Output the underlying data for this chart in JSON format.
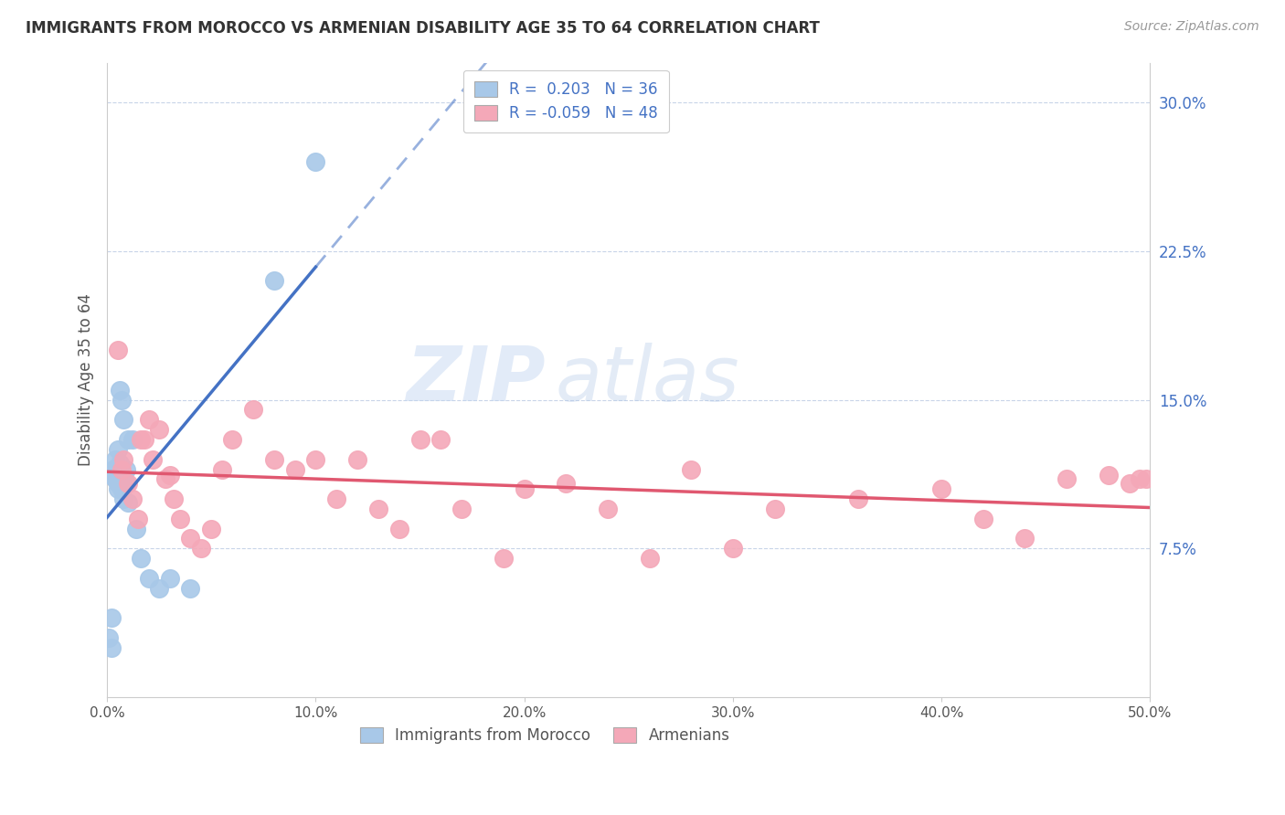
{
  "title": "IMMIGRANTS FROM MOROCCO VS ARMENIAN DISABILITY AGE 35 TO 64 CORRELATION CHART",
  "source": "Source: ZipAtlas.com",
  "ylabel": "Disability Age 35 to 64",
  "xlim": [
    0.0,
    0.5
  ],
  "ylim": [
    0.0,
    0.32
  ],
  "xticks": [
    0.0,
    0.1,
    0.2,
    0.3,
    0.4,
    0.5
  ],
  "yticks": [
    0.075,
    0.15,
    0.225,
    0.3
  ],
  "ytick_labels": [
    "7.5%",
    "15.0%",
    "22.5%",
    "30.0%"
  ],
  "xtick_labels": [
    "0.0%",
    "10.0%",
    "20.0%",
    "30.0%",
    "40.0%",
    "50.0%"
  ],
  "morocco_R": 0.203,
  "morocco_N": 36,
  "armenian_R": -0.059,
  "armenian_N": 48,
  "morocco_color": "#a8c8e8",
  "armenian_color": "#f4a8b8",
  "morocco_line_color": "#4472c4",
  "armenian_line_color": "#e05870",
  "tick_color": "#4472c4",
  "background_color": "#ffffff",
  "grid_color": "#c8d4e8",
  "watermark_text": "ZIPatlas",
  "morocco_x": [
    0.001,
    0.002,
    0.002,
    0.003,
    0.003,
    0.003,
    0.004,
    0.004,
    0.004,
    0.005,
    0.005,
    0.005,
    0.005,
    0.006,
    0.006,
    0.006,
    0.006,
    0.007,
    0.007,
    0.007,
    0.008,
    0.008,
    0.008,
    0.009,
    0.009,
    0.01,
    0.01,
    0.012,
    0.014,
    0.016,
    0.02,
    0.025,
    0.03,
    0.04,
    0.08,
    0.1
  ],
  "morocco_y": [
    0.03,
    0.025,
    0.04,
    0.115,
    0.115,
    0.115,
    0.11,
    0.11,
    0.12,
    0.105,
    0.108,
    0.112,
    0.125,
    0.11,
    0.11,
    0.118,
    0.155,
    0.105,
    0.108,
    0.15,
    0.1,
    0.112,
    0.14,
    0.108,
    0.115,
    0.098,
    0.13,
    0.13,
    0.085,
    0.07,
    0.06,
    0.055,
    0.06,
    0.055,
    0.21,
    0.27
  ],
  "armenian_x": [
    0.005,
    0.007,
    0.008,
    0.01,
    0.012,
    0.015,
    0.016,
    0.018,
    0.02,
    0.022,
    0.025,
    0.028,
    0.03,
    0.032,
    0.035,
    0.04,
    0.045,
    0.05,
    0.055,
    0.06,
    0.07,
    0.08,
    0.09,
    0.1,
    0.11,
    0.12,
    0.13,
    0.14,
    0.15,
    0.16,
    0.17,
    0.19,
    0.2,
    0.22,
    0.24,
    0.26,
    0.28,
    0.3,
    0.32,
    0.36,
    0.4,
    0.42,
    0.44,
    0.46,
    0.48,
    0.49,
    0.495,
    0.498
  ],
  "armenian_y": [
    0.175,
    0.115,
    0.12,
    0.108,
    0.1,
    0.09,
    0.13,
    0.13,
    0.14,
    0.12,
    0.135,
    0.11,
    0.112,
    0.1,
    0.09,
    0.08,
    0.075,
    0.085,
    0.115,
    0.13,
    0.145,
    0.12,
    0.115,
    0.12,
    0.1,
    0.12,
    0.095,
    0.085,
    0.13,
    0.13,
    0.095,
    0.07,
    0.105,
    0.108,
    0.095,
    0.07,
    0.115,
    0.075,
    0.095,
    0.1,
    0.105,
    0.09,
    0.08,
    0.11,
    0.112,
    0.108,
    0.11,
    0.11
  ]
}
